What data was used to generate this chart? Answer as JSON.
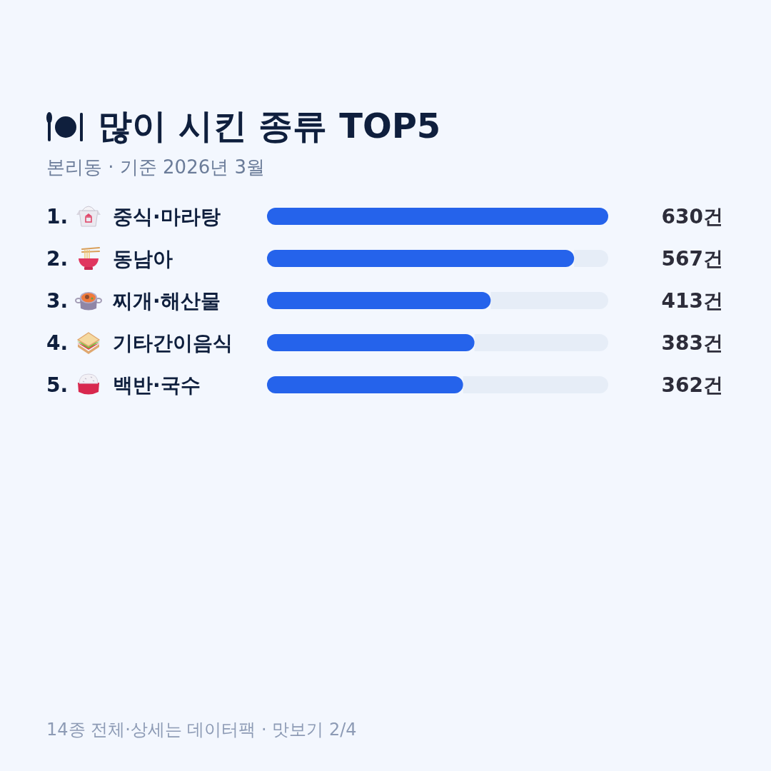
{
  "chart_data": {
    "type": "bar",
    "orientation": "horizontal",
    "title": "많이 시킨 종류 TOP5",
    "subtitle": "본리동 · 기준 2026년 3월",
    "categories": [
      "1. 중식·마라탕",
      "2. 동남아",
      "3. 찌개·해산물",
      "4. 기타간이음식",
      "5. 백반·국수"
    ],
    "values": [
      630,
      567,
      413,
      383,
      362
    ],
    "color": "#2563eb",
    "xlim": [
      0,
      630
    ],
    "value_labels": [
      "630건",
      "567건",
      "413건",
      "383건",
      "362건"
    ],
    "annotations": [
      "14종 전체·상세는 데이터팩 · 맛보기 2/4"
    ]
  }
}
